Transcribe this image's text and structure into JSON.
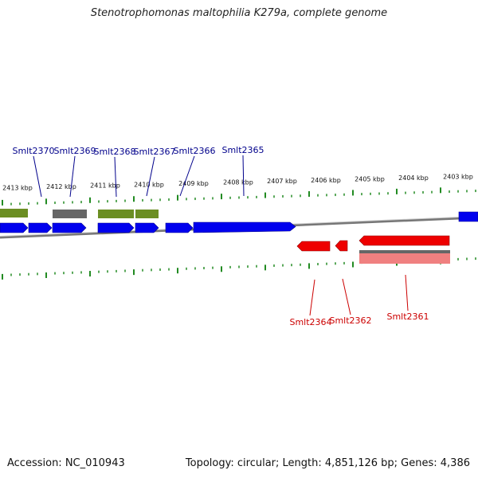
{
  "title": "Stenotrophomonas maltophilia K279a, complete genome",
  "footer": {
    "accession": "Accession: NC_010943",
    "summary": "Topology: circular; Length: 4,851,126 bp; Genes: 4,386"
  },
  "colors": {
    "plus_cds": "#0000ee",
    "minus_cds": "#ee0000",
    "plus_rna": "#6b8e23",
    "pseudo": "#666666",
    "minus_rna": "#f08080",
    "ticks": "#228b22",
    "backbone": "#888888",
    "label_plus": "#00008b",
    "label_minus": "#cc0000"
  },
  "scale_labels": [
    "2413 kbp",
    "2412 kbp",
    "2411 kbp",
    "2410 kbp",
    "2409 kbp",
    "2408 kbp",
    "2407 kbp",
    "2406 kbp",
    "2405 kbp",
    "2404 kbp",
    "2403 kbp"
  ],
  "gene_labels_plus": [
    "Smlt2370",
    "Smlt2369",
    "Smlt2368",
    "Smlt2367",
    "Smlt2366",
    "Smlt2365"
  ],
  "gene_labels_minus": [
    "Smlt2364",
    "Smlt2362",
    "Smlt2361"
  ]
}
